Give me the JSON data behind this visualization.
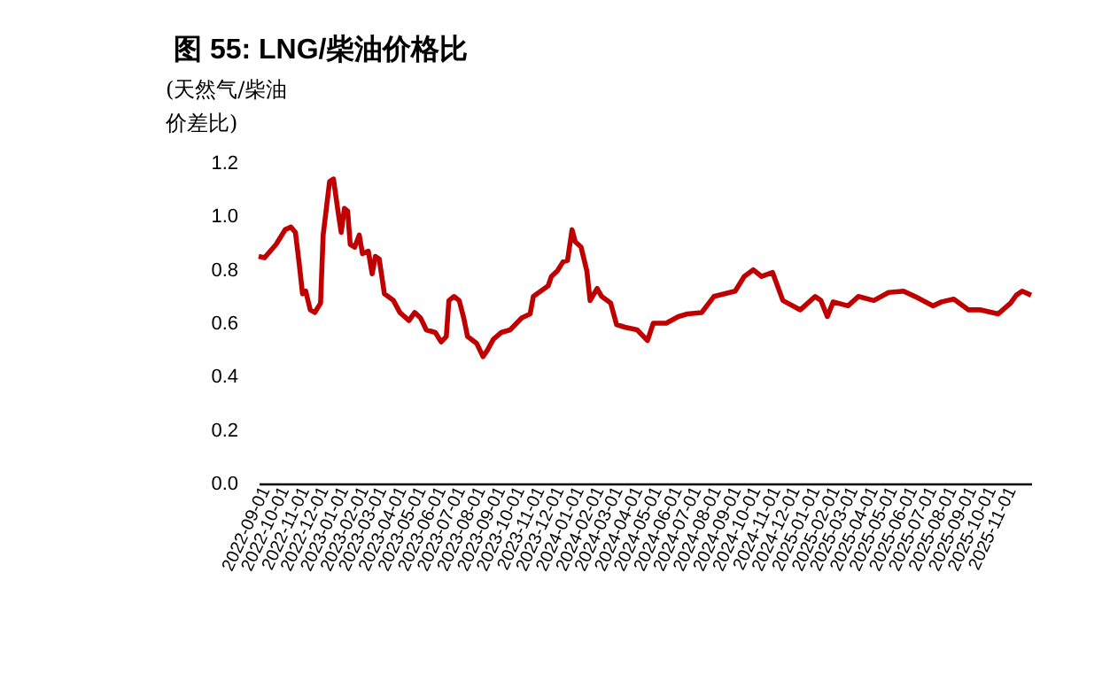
{
  "chart_data": {
    "type": "line",
    "title": "图 55: LNG/柴油价格比",
    "ylabel": "(天然气/柴油价差比)",
    "x": [
      "2022-08-23",
      "2022-09-01",
      "2022-09-19",
      "2022-10-03",
      "2022-10-12",
      "2022-10-19",
      "2022-10-25",
      "2022-10-30",
      "2022-11-04",
      "2022-11-11",
      "2022-11-18",
      "2022-11-27",
      "2022-12-01",
      "2022-12-11",
      "2022-12-17",
      "2022-12-24",
      "2022-12-29",
      "2023-01-03",
      "2023-01-08",
      "2023-01-12",
      "2023-01-19",
      "2023-01-26",
      "2023-01-31",
      "2023-02-09",
      "2023-02-15",
      "2023-02-20",
      "2023-02-26",
      "2023-03-06",
      "2023-03-20",
      "2023-03-30",
      "2023-04-13",
      "2023-04-22",
      "2023-05-01",
      "2023-05-10",
      "2023-05-24",
      "2023-06-02",
      "2023-06-10",
      "2023-06-14",
      "2023-06-22",
      "2023-06-30",
      "2023-07-07",
      "2023-07-13",
      "2023-07-27",
      "2023-08-06",
      "2023-08-13",
      "2023-08-22",
      "2023-09-03",
      "2023-09-17",
      "2023-10-05",
      "2023-10-18",
      "2023-10-23",
      "2023-11-15",
      "2023-11-20",
      "2023-11-29",
      "2023-12-08",
      "2023-12-15",
      "2023-12-22",
      "2023-12-27",
      "2024-01-05",
      "2024-01-14",
      "2024-01-19",
      "2024-01-30",
      "2024-02-06",
      "2024-02-20",
      "2024-02-29",
      "2024-03-13",
      "2024-04-01",
      "2024-04-17",
      "2024-04-26",
      "2024-05-16",
      "2024-06-04",
      "2024-06-18",
      "2024-07-10",
      "2024-07-29",
      "2024-08-31",
      "2024-09-14",
      "2024-09-28",
      "2024-10-11",
      "2024-10-28",
      "2024-11-13",
      "2024-12-10",
      "2025-01-02",
      "2025-01-11",
      "2025-01-21",
      "2025-01-30",
      "2025-02-22",
      "2025-03-10",
      "2025-04-03",
      "2025-04-26",
      "2025-05-19",
      "2025-06-06",
      "2025-07-04",
      "2025-07-17",
      "2025-08-05",
      "2025-08-28",
      "2025-09-16",
      "2025-10-13",
      "2025-11-01",
      "2025-11-10",
      "2025-11-19",
      "2025-12-03"
    ],
    "series": [
      {
        "color": "#c00000",
        "values": [
          0.85,
          0.845,
          0.895,
          0.95,
          0.96,
          0.94,
          0.82,
          0.71,
          0.72,
          0.65,
          0.64,
          0.675,
          0.93,
          1.13,
          1.14,
          1.02,
          0.94,
          1.03,
          1.02,
          0.895,
          0.885,
          0.93,
          0.86,
          0.87,
          0.785,
          0.85,
          0.84,
          0.71,
          0.685,
          0.64,
          0.61,
          0.64,
          0.62,
          0.575,
          0.565,
          0.53,
          0.55,
          0.685,
          0.7,
          0.685,
          0.62,
          0.55,
          0.525,
          0.475,
          0.5,
          0.54,
          0.565,
          0.575,
          0.62,
          0.635,
          0.7,
          0.74,
          0.775,
          0.795,
          0.83,
          0.835,
          0.95,
          0.905,
          0.885,
          0.795,
          0.685,
          0.73,
          0.7,
          0.675,
          0.595,
          0.585,
          0.575,
          0.535,
          0.6,
          0.6,
          0.625,
          0.635,
          0.64,
          0.7,
          0.72,
          0.775,
          0.8,
          0.775,
          0.79,
          0.685,
          0.65,
          0.7,
          0.685,
          0.625,
          0.68,
          0.665,
          0.7,
          0.685,
          0.715,
          0.72,
          0.7,
          0.665,
          0.68,
          0.69,
          0.65,
          0.65,
          0.635,
          0.675,
          0.705,
          0.72,
          0.705
        ]
      }
    ],
    "xlim": [
      "2022-08-23",
      "2025-12-03"
    ],
    "xticks": [
      "2022-09-01",
      "2022-10-01",
      "2022-11-01",
      "2022-12-01",
      "2023-01-01",
      "2023-02-01",
      "2023-03-01",
      "2023-04-01",
      "2023-05-01",
      "2023-06-01",
      "2023-07-01",
      "2023-08-01",
      "2023-09-01",
      "2023-10-01",
      "2023-11-01",
      "2023-12-01",
      "2024-01-01",
      "2024-02-01",
      "2024-03-01",
      "2024-04-01",
      "2024-05-01",
      "2024-06-01",
      "2024-07-01",
      "2024-08-01",
      "2024-09-01",
      "2024-10-01",
      "2024-11-01",
      "2024-12-01",
      "2025-01-01",
      "2025-02-01",
      "2025-03-01",
      "2025-04-01",
      "2025-05-01",
      "2025-06-01",
      "2025-07-01",
      "2025-08-01",
      "2025-09-01",
      "2025-10-01",
      "2025-11-01"
    ],
    "ylim": [
      0,
      1.2
    ],
    "yticks": [
      {
        "value": 0,
        "label": "0.0"
      },
      {
        "value": 0.2,
        "label": "0.2"
      },
      {
        "value": 0.4,
        "label": "0.4"
      },
      {
        "value": 0.6,
        "label": "0.6"
      },
      {
        "value": 0.8,
        "label": "0.8"
      },
      {
        "value": 1,
        "label": "1.0"
      },
      {
        "value": 1.2,
        "label": "1.2"
      }
    ],
    "grid": false,
    "legend": false
  }
}
